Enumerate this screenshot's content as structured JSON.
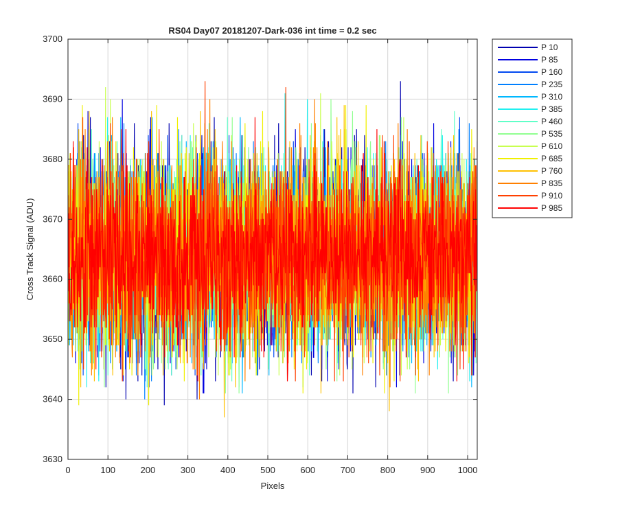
{
  "chart_data": {
    "type": "line",
    "title": "RS04 Day07 20181207-Dark-036 int time = 0.2 sec",
    "xlabel": "Pixels",
    "ylabel": "Cross Track Signal (ADU)",
    "xlim": [
      0,
      1024
    ],
    "ylim": [
      3630,
      3700
    ],
    "xticks": [
      0,
      100,
      200,
      300,
      400,
      500,
      600,
      700,
      800,
      900,
      1000
    ],
    "yticks": [
      3630,
      3640,
      3650,
      3660,
      3670,
      3680,
      3690,
      3700
    ],
    "grid": true,
    "legend_position": "outside-top-right",
    "n_pixels": 1024,
    "series": [
      {
        "name": "P 10",
        "color": "#0000B0",
        "mean": 3664,
        "noise_range": [
          3637,
          3693
        ]
      },
      {
        "name": "P 85",
        "color": "#0000E0",
        "mean": 3664,
        "noise_range": [
          3641,
          3690
        ]
      },
      {
        "name": "P 160",
        "color": "#0048F0",
        "mean": 3664,
        "noise_range": [
          3642,
          3688
        ]
      },
      {
        "name": "P 235",
        "color": "#0080FF",
        "mean": 3664,
        "noise_range": [
          3638,
          3686
        ]
      },
      {
        "name": "P 310",
        "color": "#00B8FF",
        "mean": 3664,
        "noise_range": [
          3641,
          3687
        ]
      },
      {
        "name": "P 385",
        "color": "#20F0F0",
        "mean": 3664,
        "noise_range": [
          3642,
          3691
        ]
      },
      {
        "name": "P 460",
        "color": "#60FFC8",
        "mean": 3664,
        "noise_range": [
          3642,
          3690
        ]
      },
      {
        "name": "P 535",
        "color": "#90FF90",
        "mean": 3664,
        "noise_range": [
          3641,
          3693
        ]
      },
      {
        "name": "P 610",
        "color": "#C8FF50",
        "mean": 3664,
        "noise_range": [
          3642,
          3692
        ]
      },
      {
        "name": "P 685",
        "color": "#F0F000",
        "mean": 3664,
        "noise_range": [
          3639,
          3689
        ]
      },
      {
        "name": "P 760",
        "color": "#FFC000",
        "mean": 3664,
        "noise_range": [
          3637,
          3689
        ]
      },
      {
        "name": "P 835",
        "color": "#FF8000",
        "mean": 3664,
        "noise_range": [
          3640,
          3693
        ]
      },
      {
        "name": "P 910",
        "color": "#FF4000",
        "mean": 3664,
        "noise_range": [
          3643,
          3693
        ]
      },
      {
        "name": "P 985",
        "color": "#FF0000",
        "mean": 3664,
        "noise_range": [
          3643,
          3690
        ]
      }
    ]
  }
}
